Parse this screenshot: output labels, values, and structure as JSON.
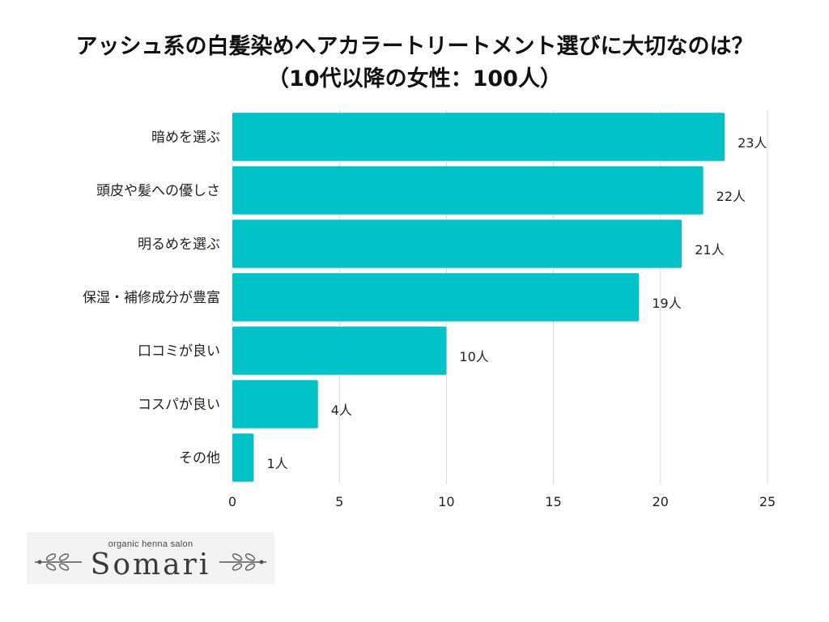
{
  "chart_data": {
    "type": "bar",
    "orientation": "horizontal",
    "title": "アッシュ系の白髪染めヘアカラートリートメント選びに大切なのは？",
    "subtitle": "（10代以降の女性：100人）",
    "categories": [
      "暗めを選ぶ",
      "頭皮や髪への優しさ",
      "明るめを選ぶ",
      "保湿・補修成分が豊富",
      "口コミが良い",
      "コスパが良い",
      "その他"
    ],
    "values": [
      23,
      22,
      21,
      19,
      10,
      4,
      1
    ],
    "value_labels": [
      "23人",
      "22人",
      "21人",
      "19人",
      "10人",
      "4人",
      "1人"
    ],
    "xlim": [
      0,
      25
    ],
    "xticks": [
      0,
      5,
      10,
      15,
      20,
      25
    ],
    "xlabel": "",
    "ylabel": "",
    "grid": "vertical",
    "bar_color": "#00C2C7",
    "grid_color": "#D9D9D9"
  },
  "logo": {
    "tagline": "organic henna salon",
    "brand": "Somari"
  }
}
